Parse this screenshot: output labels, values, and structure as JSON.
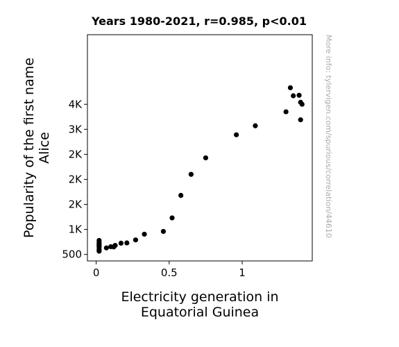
{
  "chart_data": {
    "type": "scatter",
    "title": "Years 1980-2021, r=0.985, p<0.01",
    "xlabel_lines": [
      "Electricity generation in",
      "Equatorial Guinea"
    ],
    "ylabel_lines": [
      "Popularity of the first name",
      "Alice"
    ],
    "watermark": "More info: tylervigen.com/spurious/correlation/44610",
    "xlim": [
      -0.06,
      1.48
    ],
    "ylim": [
      370,
      4890
    ],
    "x_ticks": [
      {
        "value": 0,
        "label": "0"
      },
      {
        "value": 0.5,
        "label": "0.5"
      },
      {
        "value": 1,
        "label": "1"
      }
    ],
    "y_ticks": [
      {
        "value": 500,
        "label": "500"
      },
      {
        "value": 1000,
        "label": "1K"
      },
      {
        "value": 1500,
        "label": "2K"
      },
      {
        "value": 2000,
        "label": "2K"
      },
      {
        "value": 2500,
        "label": "2K"
      },
      {
        "value": 3000,
        "label": "3K"
      },
      {
        "value": 3500,
        "label": "4K"
      }
    ],
    "point_color": "#000000",
    "points": [
      {
        "x": 0.02,
        "y": 780
      },
      {
        "x": 0.02,
        "y": 740
      },
      {
        "x": 0.02,
        "y": 710
      },
      {
        "x": 0.02,
        "y": 690
      },
      {
        "x": 0.02,
        "y": 665
      },
      {
        "x": 0.02,
        "y": 650
      },
      {
        "x": 0.02,
        "y": 605
      },
      {
        "x": 0.02,
        "y": 585
      },
      {
        "x": 0.02,
        "y": 565
      },
      {
        "x": 0.07,
        "y": 630
      },
      {
        "x": 0.1,
        "y": 655
      },
      {
        "x": 0.12,
        "y": 650
      },
      {
        "x": 0.13,
        "y": 680
      },
      {
        "x": 0.17,
        "y": 725
      },
      {
        "x": 0.21,
        "y": 730
      },
      {
        "x": 0.27,
        "y": 790
      },
      {
        "x": 0.33,
        "y": 905
      },
      {
        "x": 0.46,
        "y": 960
      },
      {
        "x": 0.52,
        "y": 1230
      },
      {
        "x": 0.58,
        "y": 1680
      },
      {
        "x": 0.65,
        "y": 2100
      },
      {
        "x": 0.75,
        "y": 2430
      },
      {
        "x": 0.96,
        "y": 2890
      },
      {
        "x": 1.09,
        "y": 3070
      },
      {
        "x": 1.3,
        "y": 3350
      },
      {
        "x": 1.33,
        "y": 3830
      },
      {
        "x": 1.35,
        "y": 3670
      },
      {
        "x": 1.39,
        "y": 3680
      },
      {
        "x": 1.4,
        "y": 3540
      },
      {
        "x": 1.4,
        "y": 3190
      },
      {
        "x": 1.41,
        "y": 3500
      }
    ]
  }
}
